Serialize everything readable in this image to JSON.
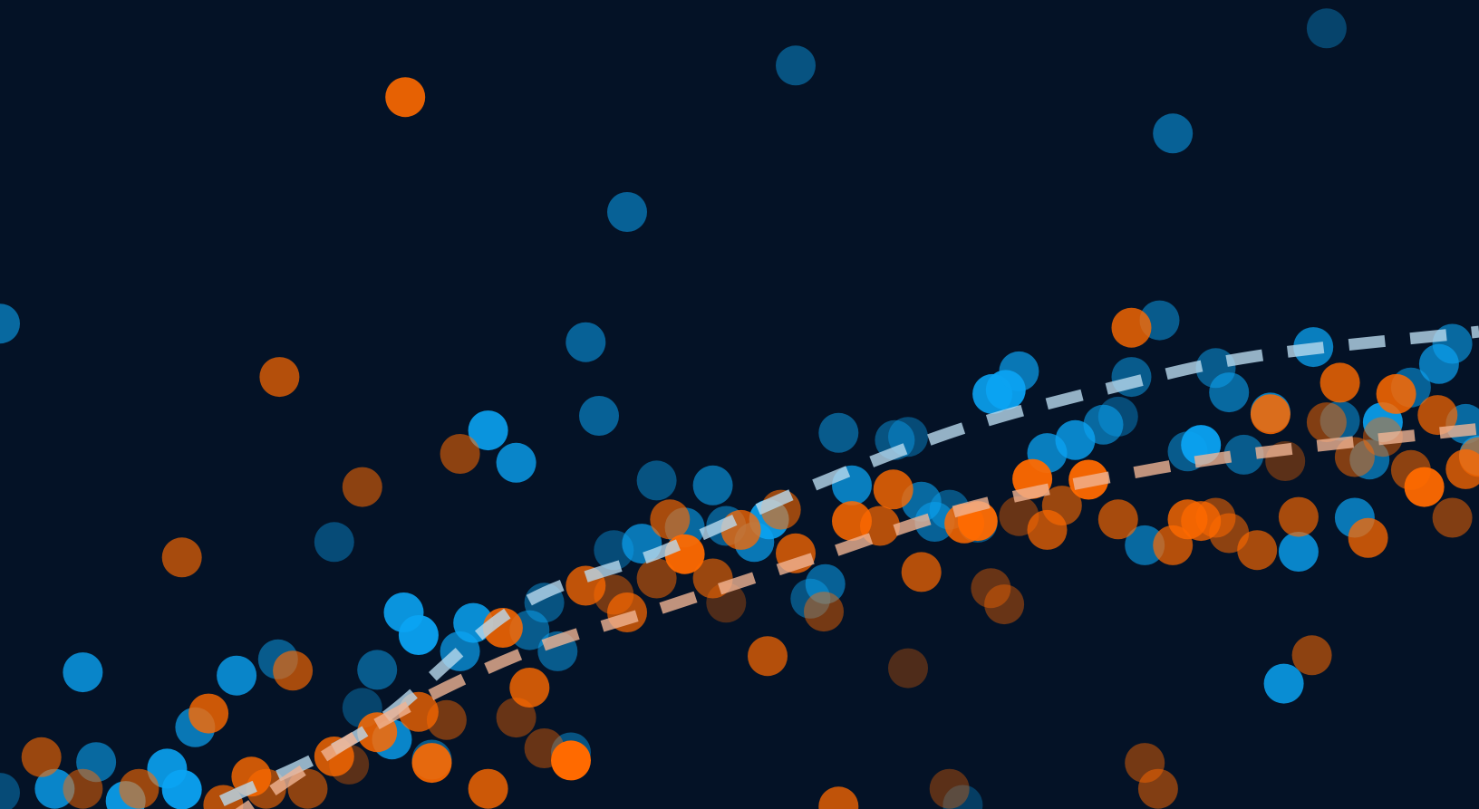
{
  "chart_data": {
    "type": "scatter",
    "title": "",
    "xlabel": "",
    "ylabel": "",
    "xlim": [
      0,
      100
    ],
    "ylim": [
      0,
      100
    ],
    "grid": false,
    "legend": "none",
    "background": "#041226",
    "series": [
      {
        "color": "#0ba3f2",
        "trend_color": "#b9d9ee",
        "trend": {
          "x": [
            15,
            25,
            35,
            45,
            55,
            65,
            75,
            85,
            100
          ],
          "y": [
            1,
            10,
            25,
            32,
            40,
            47,
            52,
            56,
            59
          ]
        },
        "points": [
          {
            "x": 0.0,
            "y": 2.0,
            "a": 0.4
          },
          {
            "x": 3.7,
            "y": 2.5,
            "a": 0.8
          },
          {
            "x": 6.5,
            "y": 5.8,
            "a": 0.6
          },
          {
            "x": 8.5,
            "y": 1.0,
            "a": 0.9
          },
          {
            "x": 11.3,
            "y": 5.0,
            "a": 0.9
          },
          {
            "x": 12.3,
            "y": 2.4,
            "a": 0.95
          },
          {
            "x": 5.6,
            "y": 16.9,
            "a": 0.8
          },
          {
            "x": 13.2,
            "y": 10.1,
            "a": 0.7
          },
          {
            "x": 16.0,
            "y": 16.5,
            "a": 0.8
          },
          {
            "x": 18.8,
            "y": 18.5,
            "a": 0.5
          },
          {
            "x": 25.5,
            "y": 17.2,
            "a": 0.5
          },
          {
            "x": 24.5,
            "y": 12.5,
            "a": 0.35
          },
          {
            "x": 26.5,
            "y": 8.6,
            "a": 0.8
          },
          {
            "x": 29.2,
            "y": 6.1,
            "a": 0.5
          },
          {
            "x": 27.3,
            "y": 24.3,
            "a": 0.9
          },
          {
            "x": 28.3,
            "y": 21.5,
            "a": 0.95
          },
          {
            "x": 31.1,
            "y": 19.5,
            "a": 0.7
          },
          {
            "x": 32.0,
            "y": 23.0,
            "a": 0.85
          },
          {
            "x": 35.8,
            "y": 22.1,
            "a": 0.5
          },
          {
            "x": 37.7,
            "y": 19.5,
            "a": 0.5
          },
          {
            "x": 36.8,
            "y": 25.5,
            "a": 0.45
          },
          {
            "x": 38.6,
            "y": 7.0,
            "a": 0.45
          },
          {
            "x": 41.5,
            "y": 32.0,
            "a": 0.4
          },
          {
            "x": 43.4,
            "y": 32.8,
            "a": 0.7
          },
          {
            "x": 44.4,
            "y": 40.6,
            "a": 0.45
          },
          {
            "x": 46.3,
            "y": 34.8,
            "a": 0.6
          },
          {
            "x": 48.2,
            "y": 40.0,
            "a": 0.6
          },
          {
            "x": 49.1,
            "y": 35.0,
            "a": 0.5
          },
          {
            "x": 51.0,
            "y": 33.0,
            "a": 0.7
          },
          {
            "x": 52.0,
            "y": 35.8,
            "a": 0.9
          },
          {
            "x": 55.8,
            "y": 27.8,
            "a": 0.55
          },
          {
            "x": 54.8,
            "y": 26.0,
            "a": 0.45
          },
          {
            "x": 56.7,
            "y": 46.5,
            "a": 0.5
          },
          {
            "x": 57.6,
            "y": 40.0,
            "a": 0.75
          },
          {
            "x": 60.5,
            "y": 45.6,
            "a": 0.45
          },
          {
            "x": 61.4,
            "y": 46.0,
            "a": 0.4
          },
          {
            "x": 62.3,
            "y": 38.0,
            "a": 0.6
          },
          {
            "x": 63.2,
            "y": 35.5,
            "a": 0.55
          },
          {
            "x": 64.2,
            "y": 37.0,
            "a": 0.45
          },
          {
            "x": 66.1,
            "y": 35.4,
            "a": 0.45
          },
          {
            "x": 67.1,
            "y": 51.3,
            "a": 0.9
          },
          {
            "x": 68.0,
            "y": 51.8,
            "a": 0.95
          },
          {
            "x": 68.9,
            "y": 54.1,
            "a": 0.7
          },
          {
            "x": 70.8,
            "y": 44.0,
            "a": 0.75
          },
          {
            "x": 72.7,
            "y": 45.6,
            "a": 0.8
          },
          {
            "x": 74.6,
            "y": 47.5,
            "a": 0.6
          },
          {
            "x": 75.6,
            "y": 48.5,
            "a": 0.4
          },
          {
            "x": 76.5,
            "y": 53.4,
            "a": 0.5
          },
          {
            "x": 78.4,
            "y": 60.4,
            "a": 0.5
          },
          {
            "x": 77.4,
            "y": 32.6,
            "a": 0.6
          },
          {
            "x": 80.3,
            "y": 44.2,
            "a": 0.5
          },
          {
            "x": 81.2,
            "y": 45.0,
            "a": 0.95
          },
          {
            "x": 82.2,
            "y": 54.5,
            "a": 0.5
          },
          {
            "x": 83.1,
            "y": 51.5,
            "a": 0.6
          },
          {
            "x": 84.1,
            "y": 43.8,
            "a": 0.5
          },
          {
            "x": 85.9,
            "y": 49.0,
            "a": 0.75
          },
          {
            "x": 87.8,
            "y": 31.8,
            "a": 0.8
          },
          {
            "x": 88.8,
            "y": 57.1,
            "a": 0.75
          },
          {
            "x": 90.6,
            "y": 48.0,
            "a": 0.5
          },
          {
            "x": 91.6,
            "y": 36.0,
            "a": 0.7
          },
          {
            "x": 92.6,
            "y": 43.2,
            "a": 0.6
          },
          {
            "x": 93.5,
            "y": 47.8,
            "a": 0.9
          },
          {
            "x": 95.4,
            "y": 52.1,
            "a": 0.55
          },
          {
            "x": 97.3,
            "y": 55.0,
            "a": 0.7
          },
          {
            "x": 98.2,
            "y": 57.5,
            "a": 0.6
          },
          {
            "x": 99.1,
            "y": 47.6,
            "a": 0.6
          },
          {
            "x": 100.0,
            "y": 43.7,
            "a": 0.75
          },
          {
            "x": 86.8,
            "y": 15.5,
            "a": 0.85
          },
          {
            "x": 0.0,
            "y": 60.0,
            "a": 0.6
          },
          {
            "x": 39.6,
            "y": 57.7,
            "a": 0.55
          },
          {
            "x": 40.5,
            "y": 48.6,
            "a": 0.55
          },
          {
            "x": 42.4,
            "y": 73.8,
            "a": 0.55
          },
          {
            "x": 53.8,
            "y": 91.9,
            "a": 0.45
          },
          {
            "x": 79.3,
            "y": 83.5,
            "a": 0.55
          },
          {
            "x": 89.7,
            "y": 96.5,
            "a": 0.35
          },
          {
            "x": 22.6,
            "y": 33.0,
            "a": 0.4
          },
          {
            "x": 33.0,
            "y": 46.8,
            "a": 0.9
          },
          {
            "x": 34.9,
            "y": 42.8,
            "a": 0.8
          },
          {
            "x": 65.1,
            "y": 0.5,
            "a": 0.3
          }
        ]
      },
      {
        "color": "#ff6a00",
        "trend_color": "#f0b493",
        "trend": {
          "x": [
            15,
            25,
            35,
            45,
            55,
            65,
            75,
            85,
            100
          ],
          "y": [
            -2,
            10,
            19,
            25,
            31,
            37,
            41,
            44,
            47
          ]
        },
        "points": [
          {
            "x": 2.8,
            "y": 6.4,
            "a": 0.6
          },
          {
            "x": 5.6,
            "y": 2.5,
            "a": 0.5
          },
          {
            "x": 9.4,
            "y": 2.5,
            "a": 0.6
          },
          {
            "x": 14.1,
            "y": 11.8,
            "a": 0.8
          },
          {
            "x": 15.1,
            "y": 0.5,
            "a": 0.7
          },
          {
            "x": 17.0,
            "y": 4.0,
            "a": 0.8
          },
          {
            "x": 18.0,
            "y": 2.5,
            "a": 0.6
          },
          {
            "x": 20.8,
            "y": 2.5,
            "a": 0.55
          },
          {
            "x": 19.8,
            "y": 17.1,
            "a": 0.65
          },
          {
            "x": 22.6,
            "y": 6.5,
            "a": 0.8
          },
          {
            "x": 23.6,
            "y": 5.5,
            "a": 0.35
          },
          {
            "x": 25.5,
            "y": 9.5,
            "a": 0.85
          },
          {
            "x": 28.3,
            "y": 12.0,
            "a": 0.75
          },
          {
            "x": 29.2,
            "y": 5.7,
            "a": 0.9
          },
          {
            "x": 30.2,
            "y": 11.0,
            "a": 0.45
          },
          {
            "x": 33.0,
            "y": 2.5,
            "a": 0.8
          },
          {
            "x": 34.0,
            "y": 22.4,
            "a": 0.85
          },
          {
            "x": 34.9,
            "y": 11.3,
            "a": 0.4
          },
          {
            "x": 35.8,
            "y": 15.0,
            "a": 0.8
          },
          {
            "x": 36.8,
            "y": 7.5,
            "a": 0.4
          },
          {
            "x": 38.6,
            "y": 6.0,
            "a": 1.0
          },
          {
            "x": 39.6,
            "y": 27.6,
            "a": 0.75
          },
          {
            "x": 41.5,
            "y": 26.5,
            "a": 0.45
          },
          {
            "x": 42.4,
            "y": 24.3,
            "a": 0.7
          },
          {
            "x": 44.4,
            "y": 28.5,
            "a": 0.5
          },
          {
            "x": 45.3,
            "y": 35.8,
            "a": 0.65
          },
          {
            "x": 46.3,
            "y": 31.5,
            "a": 0.95
          },
          {
            "x": 48.2,
            "y": 28.5,
            "a": 0.6
          },
          {
            "x": 49.1,
            "y": 25.5,
            "a": 0.3
          },
          {
            "x": 50.1,
            "y": 34.5,
            "a": 0.75
          },
          {
            "x": 51.9,
            "y": 18.9,
            "a": 0.7
          },
          {
            "x": 52.8,
            "y": 37.0,
            "a": 0.6
          },
          {
            "x": 53.8,
            "y": 31.6,
            "a": 0.75
          },
          {
            "x": 55.7,
            "y": 24.4,
            "a": 0.45
          },
          {
            "x": 57.6,
            "y": 35.6,
            "a": 0.85
          },
          {
            "x": 59.5,
            "y": 35.0,
            "a": 0.7
          },
          {
            "x": 60.4,
            "y": 39.5,
            "a": 0.8
          },
          {
            "x": 62.3,
            "y": 29.3,
            "a": 0.7
          },
          {
            "x": 61.4,
            "y": 17.4,
            "a": 0.3
          },
          {
            "x": 65.2,
            "y": 35.3,
            "a": 0.85
          },
          {
            "x": 66.1,
            "y": 35.6,
            "a": 0.95
          },
          {
            "x": 67.0,
            "y": 27.3,
            "a": 0.4
          },
          {
            "x": 67.9,
            "y": 25.3,
            "a": 0.4
          },
          {
            "x": 68.9,
            "y": 36.2,
            "a": 0.4
          },
          {
            "x": 69.8,
            "y": 40.8,
            "a": 0.95
          },
          {
            "x": 70.8,
            "y": 34.5,
            "a": 0.7
          },
          {
            "x": 71.8,
            "y": 37.5,
            "a": 0.6
          },
          {
            "x": 73.6,
            "y": 40.7,
            "a": 0.95
          },
          {
            "x": 75.6,
            "y": 35.8,
            "a": 0.65
          },
          {
            "x": 76.5,
            "y": 59.5,
            "a": 0.8
          },
          {
            "x": 77.4,
            "y": 5.7,
            "a": 0.45
          },
          {
            "x": 78.3,
            "y": 2.5,
            "a": 0.5
          },
          {
            "x": 79.3,
            "y": 32.6,
            "a": 0.7
          },
          {
            "x": 80.3,
            "y": 35.8,
            "a": 0.8
          },
          {
            "x": 81.2,
            "y": 35.6,
            "a": 0.75
          },
          {
            "x": 82.2,
            "y": 36.0,
            "a": 0.55
          },
          {
            "x": 83.1,
            "y": 34.1,
            "a": 0.55
          },
          {
            "x": 85.0,
            "y": 32.0,
            "a": 0.65
          },
          {
            "x": 85.9,
            "y": 48.8,
            "a": 0.85
          },
          {
            "x": 86.9,
            "y": 43.0,
            "a": 0.35
          },
          {
            "x": 87.8,
            "y": 36.1,
            "a": 0.65
          },
          {
            "x": 88.7,
            "y": 19.0,
            "a": 0.55
          },
          {
            "x": 89.7,
            "y": 47.8,
            "a": 0.5
          },
          {
            "x": 90.6,
            "y": 52.7,
            "a": 0.8
          },
          {
            "x": 91.6,
            "y": 43.5,
            "a": 0.5
          },
          {
            "x": 92.5,
            "y": 33.5,
            "a": 0.75
          },
          {
            "x": 93.5,
            "y": 46.0,
            "a": 0.45
          },
          {
            "x": 94.4,
            "y": 51.3,
            "a": 0.85
          },
          {
            "x": 95.4,
            "y": 41.9,
            "a": 0.55
          },
          {
            "x": 96.3,
            "y": 39.8,
            "a": 0.95
          },
          {
            "x": 97.2,
            "y": 48.7,
            "a": 0.7
          },
          {
            "x": 98.2,
            "y": 36.0,
            "a": 0.5
          },
          {
            "x": 99.1,
            "y": 42.0,
            "a": 0.75
          },
          {
            "x": 100.0,
            "y": 43.5,
            "a": 0.55
          },
          {
            "x": 27.4,
            "y": 88.0,
            "a": 0.9
          },
          {
            "x": 18.9,
            "y": 53.4,
            "a": 0.7
          },
          {
            "x": 12.3,
            "y": 31.1,
            "a": 0.65
          },
          {
            "x": 24.5,
            "y": 39.8,
            "a": 0.55
          },
          {
            "x": 31.1,
            "y": 43.9,
            "a": 0.55
          },
          {
            "x": 56.7,
            "y": 0.3,
            "a": 0.75
          },
          {
            "x": 64.2,
            "y": 2.5,
            "a": 0.35
          }
        ]
      }
    ]
  }
}
